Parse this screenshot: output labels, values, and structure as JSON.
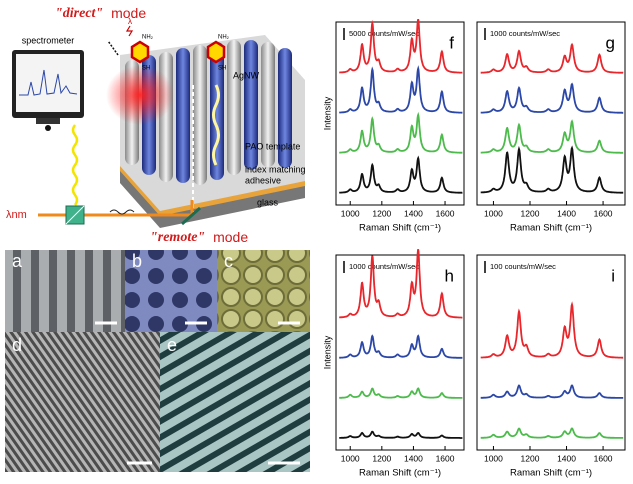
{
  "schematic": {
    "direct_quote": "\"direct\"",
    "direct_word": "mode",
    "remote_quote": "\"remote\"",
    "remote_word": "mode",
    "spectrometer": "spectrometer",
    "agnw": "AgNW",
    "pao": "PAO template",
    "adhesive_1": "index matching",
    "adhesive_2": "adhesive",
    "glass": "glass",
    "lambda_in": "λnm",
    "lambda_top": "λ",
    "molecule_top": "NH₂",
    "molecule_bottom": "SH"
  },
  "sem_panels": [
    {
      "letter": "a"
    },
    {
      "letter": "b"
    },
    {
      "letter": "c"
    },
    {
      "letter": "d"
    },
    {
      "letter": "e"
    }
  ],
  "spectra": {
    "x_label": "Raman Shift (cm⁻¹)",
    "y_label": "Intensity",
    "xlim": [
      910,
      1720
    ],
    "xticks": [
      1000,
      1200,
      1400,
      1600
    ],
    "peak_positions": [
      1000,
      1075,
      1140,
      1180,
      1300,
      1390,
      1430,
      1580
    ],
    "panels": [
      {
        "letter": "f",
        "scale_label": "5000 counts/mW/sec",
        "series": [
          {
            "color": "#e8262b",
            "intensities": [
              5,
              45,
              80,
              15,
              5,
              50,
              85,
              35
            ]
          },
          {
            "color": "#2b47a8",
            "intensities": [
              5,
              40,
              70,
              12,
              5,
              45,
              70,
              35
            ]
          },
          {
            "color": "#4cbb4c",
            "intensities": [
              5,
              35,
              55,
              10,
              5,
              40,
              60,
              30
            ]
          },
          {
            "color": "#111111",
            "intensities": [
              5,
              30,
              45,
              10,
              5,
              35,
              55,
              25
            ]
          }
        ]
      },
      {
        "letter": "g",
        "scale_label": "1000 counts/mW/sec",
        "series": [
          {
            "color": "#e8262b",
            "intensities": [
              5,
              30,
              35,
              8,
              5,
              25,
              45,
              30
            ]
          },
          {
            "color": "#2b47a8",
            "intensities": [
              5,
              35,
              40,
              8,
              5,
              35,
              45,
              25
            ]
          },
          {
            "color": "#4cbb4c",
            "intensities": [
              5,
              40,
              45,
              8,
              5,
              30,
              50,
              20
            ]
          },
          {
            "color": "#111111",
            "intensities": [
              5,
              65,
              70,
              10,
              5,
              55,
              70,
              25
            ]
          }
        ]
      },
      {
        "letter": "h",
        "scale_label": "1000 counts/mW/sec",
        "series": [
          {
            "color": "#e8262b",
            "intensities": [
              5,
              55,
              100,
              20,
              5,
              50,
              110,
              40
            ]
          },
          {
            "color": "#2b47a8",
            "intensities": [
              5,
              25,
              35,
              8,
              5,
              20,
              35,
              15
            ]
          },
          {
            "color": "#4cbb4c",
            "intensities": [
              5,
              10,
              15,
              5,
              3,
              10,
              15,
              8
            ]
          },
          {
            "color": "#111111",
            "intensities": [
              3,
              8,
              10,
              3,
              2,
              6,
              8,
              4
            ]
          }
        ]
      },
      {
        "letter": "i",
        "scale_label": "100 counts/mW/sec",
        "series": [
          {
            "color": "#e8262b",
            "intensities": [
              5,
              35,
              75,
              15,
              5,
              45,
              85,
              30
            ]
          },
          {
            "color": "#2b47a8",
            "intensities": [
              5,
              10,
              20,
              5,
              3,
              10,
              20,
              8
            ]
          },
          {
            "color": "#4cbb4c",
            "intensities": [
              5,
              10,
              15,
              5,
              3,
              10,
              15,
              8
            ]
          }
        ]
      }
    ]
  }
}
